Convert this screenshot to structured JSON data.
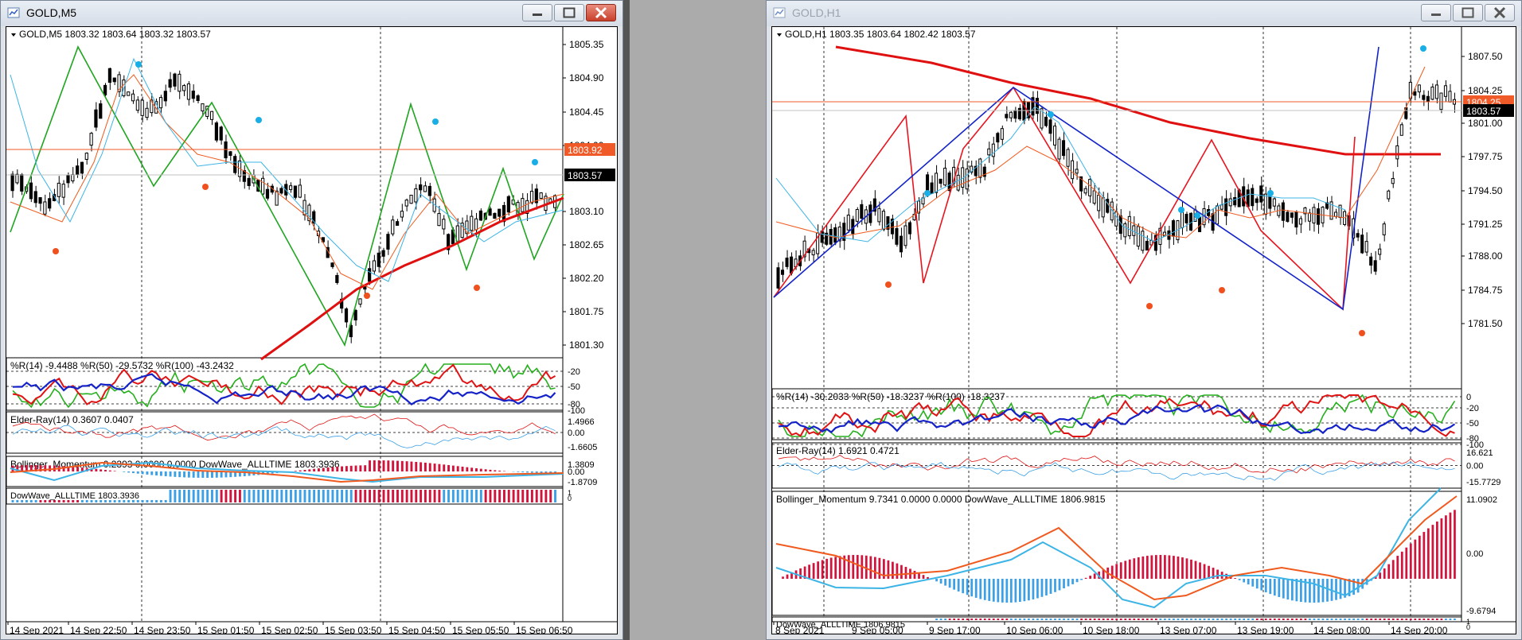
{
  "windows": [
    {
      "title": "GOLD,M5",
      "active": true,
      "ohlc_label": "GOLD,M5  1803.32 1803.64 1803.32 1803.57",
      "price_levels": [
        "1805.35",
        "1804.90",
        "1804.45",
        "1804.00",
        "1803.57",
        "1803.10",
        "1802.65",
        "1802.20",
        "1801.75",
        "1801.30"
      ],
      "bid_marker": "1803.57",
      "ask_marker": "1803.92",
      "wpr_label": "%R(14) -9.4488  %R(50) -29.5732  %R(100) -43.2432",
      "wpr_levels": [
        "-20",
        "-50",
        "-80",
        "-100"
      ],
      "elder_label": "Elder-Ray(14) 0.3607 0.0407",
      "elder_levels": [
        "1.4966",
        "0.00",
        "-1.6605"
      ],
      "momentum_label": "Bollinger_Momentum 0.2393 0.0000 0.0000  DowWave_ALLLTIME 1803.3936",
      "momentum_levels": [
        "1.3809",
        "0.00",
        "-1.8709"
      ],
      "dow_label": "DowWave_ALLLTIME 1803.3936",
      "dow_levels": [
        "1",
        "0"
      ],
      "time_labels": [
        "14 Sep 2021",
        "14 Sep 22:50",
        "14 Sep 23:50",
        "15 Sep 01:50",
        "15 Sep 02:50",
        "15 Sep 03:50",
        "15 Sep 04:50",
        "15 Sep 05:50",
        "15 Sep 06:50"
      ]
    },
    {
      "title": "GOLD,H1",
      "active": false,
      "ohlc_label": "GOLD,H1  1803.35 1803.64 1802.42 1803.57",
      "price_levels": [
        "1807.50",
        "1804.25",
        "1801.00",
        "1797.75",
        "1794.50",
        "1791.25",
        "1788.00",
        "1784.75",
        "1781.50"
      ],
      "bid_marker": "1803.57",
      "ask_marker": "1804.25",
      "wpr_label": "%R(14) -30.2033  %R(50) -18.3237  %R(100) -18.3237",
      "wpr_levels": [
        "0",
        "-20",
        "-50",
        "-80",
        "-100"
      ],
      "elder_label": "Elder-Ray(14) 1.6921 0.4721",
      "elder_levels": [
        "16.621",
        "0.00",
        "-15.7729"
      ],
      "momentum_label": "Bollinger_Momentum 9.7341 0.0000 0.0000  DowWave_ALLLTIME 1806.9815",
      "momentum_levels": [
        "11.0902",
        "0.00",
        "-9.6794"
      ],
      "dow_label": "DowWave_ALLLTIME 1806.9815",
      "dow_levels": [
        "1",
        "0"
      ],
      "time_labels": [
        "8 Sep 2021",
        "9 Sep 05:00",
        "9 Sep 17:00",
        "10 Sep 06:00",
        "10 Sep 18:00",
        "13 Sep 07:00",
        "13 Sep 19:00",
        "14 Sep 08:00",
        "14 Sep 20:00"
      ]
    }
  ],
  "colors": {
    "candle": "#000000",
    "zigzag_m5": "#1fa51f",
    "zigzag_h1_red": "#e8141e",
    "zigzag_h1_blue": "#1424c8",
    "ma_slow": "#e01010",
    "ma_fast": "#f05a1e",
    "ma_cyan": "#3cb4e6",
    "fractal_up": "#19aee6",
    "fractal_down": "#f0501e",
    "histo_up": "#d2143c",
    "histo_down": "#3ca0e6",
    "ask_line": "#f05a28",
    "bid_line": "#c0c0c0"
  }
}
